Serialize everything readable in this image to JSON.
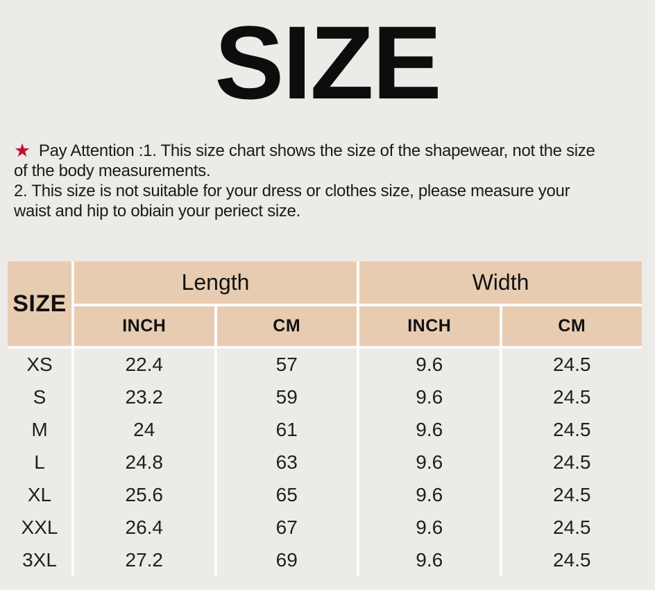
{
  "page": {
    "title": "SIZE",
    "colors": {
      "page_background": "#ECEBE8",
      "table_header_background": "#E8CCB2",
      "divider_white": "#FDFCFB",
      "star_red": "#BE1230",
      "text": "#151515"
    }
  },
  "note": {
    "star_icon": "★",
    "lines": [
      "Pay Attention :1. This size chart shows the size of the shapewear, not the size",
      "of the body measurements.",
      "2. This size is not suitable for your dress or clothes size, please measure your",
      "waist and hip to obiain your periect size."
    ]
  },
  "size_table": {
    "corner_header": "SIZE",
    "group_headers": {
      "length": "Length",
      "width": "Width"
    },
    "sub_headers": [
      "INCH",
      "CM",
      "INCH",
      "CM"
    ],
    "rows": [
      {
        "size": "XS",
        "length_inch": "22.4",
        "length_cm": "57",
        "width_inch": "9.6",
        "width_cm": "24.5"
      },
      {
        "size": "S",
        "length_inch": "23.2",
        "length_cm": "59",
        "width_inch": "9.6",
        "width_cm": "24.5"
      },
      {
        "size": "M",
        "length_inch": "24",
        "length_cm": "61",
        "width_inch": "9.6",
        "width_cm": "24.5"
      },
      {
        "size": "L",
        "length_inch": "24.8",
        "length_cm": "63",
        "width_inch": "9.6",
        "width_cm": "24.5"
      },
      {
        "size": "XL",
        "length_inch": "25.6",
        "length_cm": "65",
        "width_inch": "9.6",
        "width_cm": "24.5"
      },
      {
        "size": "XXL",
        "length_inch": "26.4",
        "length_cm": "67",
        "width_inch": "9.6",
        "width_cm": "24.5"
      },
      {
        "size": "3XL",
        "length_inch": "27.2",
        "length_cm": "69",
        "width_inch": "9.6",
        "width_cm": "24.5"
      }
    ]
  }
}
